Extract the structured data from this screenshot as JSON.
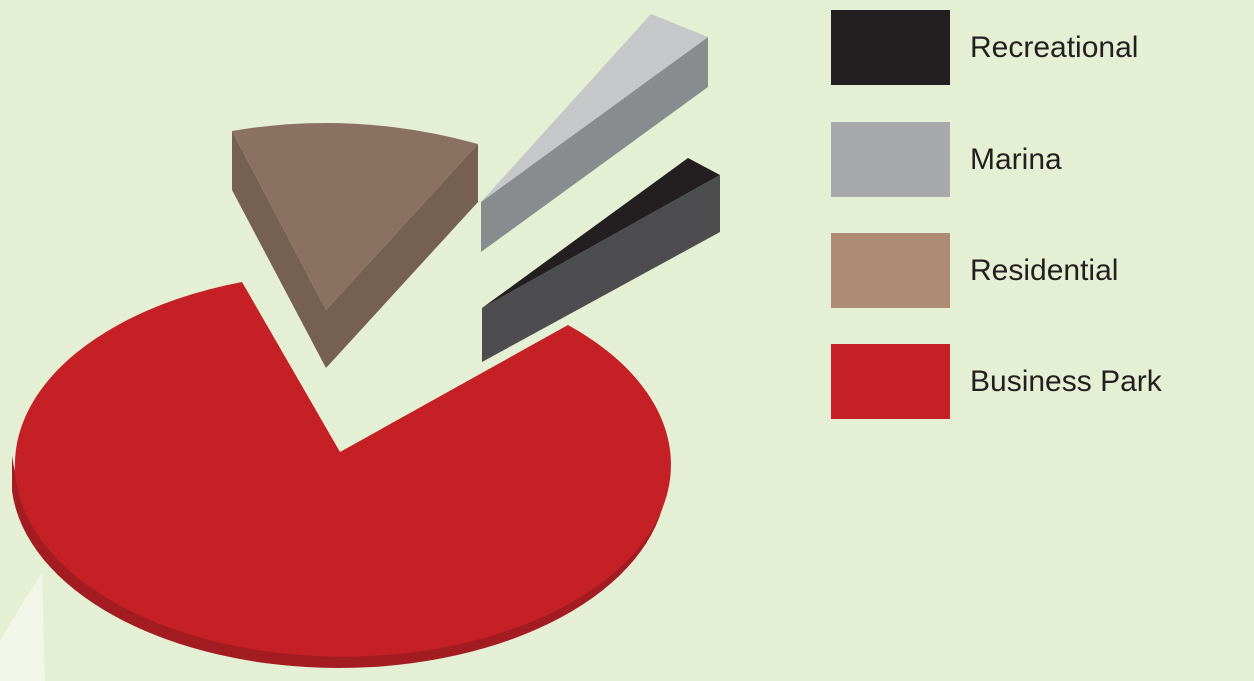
{
  "chart_data": {
    "type": "pie",
    "style": "3d-exploded",
    "categories": [
      "Recreational",
      "Marina",
      "Residential",
      "Business Park"
    ],
    "values": [
      3,
      5,
      12,
      80
    ],
    "value_unit": "percent (estimated from slice angles)",
    "legend_position": "right",
    "colors": {
      "Recreational": "#231f20",
      "Marina": "#a7a9ac",
      "Residential": "#ad8b75",
      "Business Park": "#c52026"
    },
    "title": "",
    "grid": false
  },
  "legend": {
    "items": [
      {
        "label": "Recreational",
        "color": "#231f20",
        "icon": "legend-swatch-black"
      },
      {
        "label": "Marina",
        "color": "#a7a9ac",
        "icon": "legend-swatch-gray"
      },
      {
        "label": "Residential",
        "color": "#ad8b75",
        "icon": "legend-swatch-tan"
      },
      {
        "label": "Business Park",
        "color": "#c52026",
        "icon": "legend-swatch-red"
      }
    ]
  }
}
